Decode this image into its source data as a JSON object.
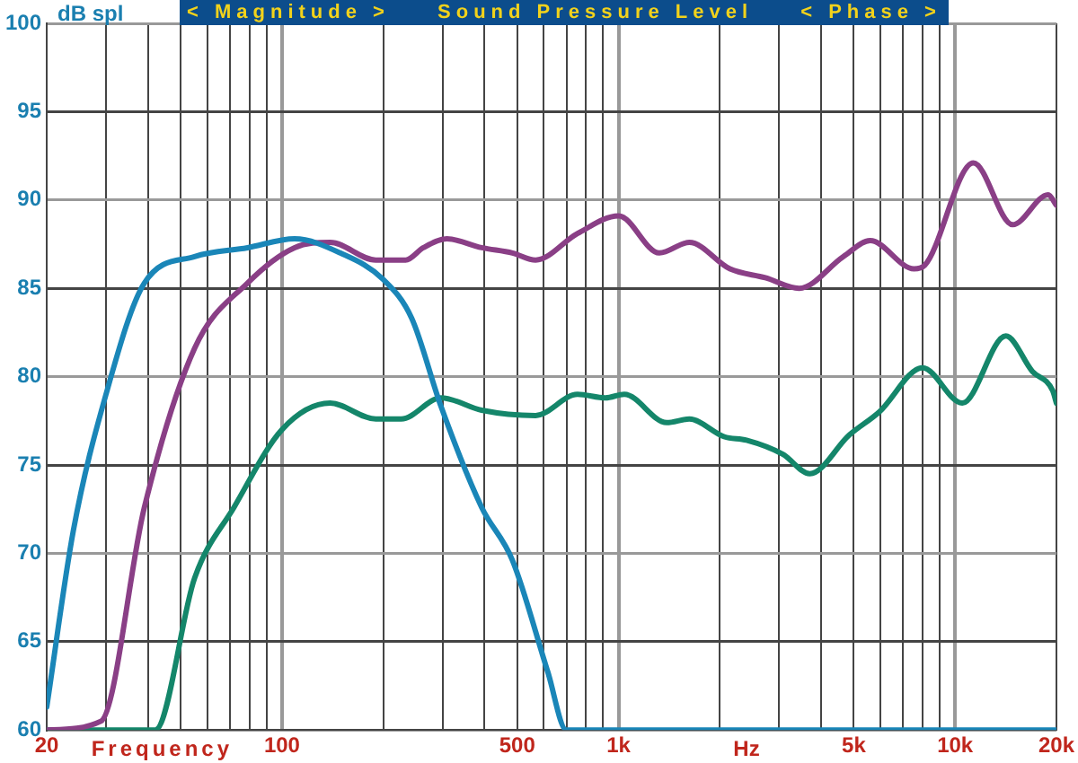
{
  "chart_data": {
    "type": "line",
    "title": "Sound Pressure Level",
    "xlabel": "Frequency",
    "ylabel": "dB spl",
    "annotations": [
      "< Magnitude >",
      "< Phase >",
      "Hz"
    ],
    "log": "x",
    "grid": true,
    "legend": false,
    "marker": "none",
    "line_style": "solid",
    "xlim": [
      20,
      20000
    ],
    "xticks": [
      20,
      {
        "value": 30,
        "label": null
      },
      {
        "value": 40,
        "label": null
      },
      {
        "value": 50,
        "label": null
      },
      {
        "value": 60,
        "label": null
      },
      {
        "value": 70,
        "label": null
      },
      {
        "value": 80,
        "label": null
      },
      {
        "value": 90,
        "label": null
      },
      100,
      {
        "value": 200,
        "label": null
      },
      {
        "value": 300,
        "label": null
      },
      {
        "value": 400,
        "label": null
      },
      500,
      {
        "value": 600,
        "label": null
      },
      {
        "value": 700,
        "label": null
      },
      {
        "value": 800,
        "label": null
      },
      {
        "value": 900,
        "label": null
      },
      {
        "value": 1000,
        "label": "1k"
      },
      {
        "value": 2000,
        "label": null
      },
      {
        "value": 3000,
        "label": null
      },
      {
        "value": 4000,
        "label": null
      },
      {
        "value": 5000,
        "label": "5k"
      },
      {
        "value": 6000,
        "label": null
      },
      {
        "value": 7000,
        "label": null
      },
      {
        "value": 8000,
        "label": null
      },
      {
        "value": 9000,
        "label": null
      },
      {
        "value": 10000,
        "label": "10k"
      },
      {
        "value": 20000,
        "label": "20k"
      }
    ],
    "ylim": [
      60,
      100
    ],
    "yticks": [
      60,
      65,
      70,
      75,
      80,
      85,
      90,
      95,
      100
    ],
    "series": [
      {
        "color": "#1a86b8",
        "x": [
          20,
          24,
          30,
          39,
          55,
          79,
          109,
          149,
          200,
          243,
          297,
          392,
          484,
          616,
          700,
          20000
        ],
        "values": [
          61.3,
          71.3,
          79,
          85.3,
          86.8,
          87.3,
          87.8,
          87,
          85.5,
          83.3,
          78.3,
          72.6,
          69.6,
          63.3,
          60,
          60
        ]
      },
      {
        "color": "#8a3f86",
        "x": [
          20,
          29,
          39,
          55,
          79,
          109,
          139,
          190,
          233,
          263,
          309,
          392,
          484,
          567,
          755,
          1000,
          1322,
          1623,
          2143,
          2730,
          3440,
          4660,
          5590,
          7550,
          8120,
          11330,
          14820,
          18900,
          20000
        ],
        "values": [
          60,
          60.5,
          72.6,
          81.6,
          85.3,
          87.3,
          87.6,
          86.6,
          86.6,
          87.3,
          87.8,
          87.3,
          87,
          86.6,
          88.1,
          89.1,
          87,
          87.6,
          86.1,
          85.6,
          85,
          86.8,
          87.7,
          86.1,
          86.3,
          92.1,
          88.6,
          90.3,
          89.7
        ]
      },
      {
        "color": "#14866a",
        "x": [
          20,
          42,
          55,
          72,
          100,
          139,
          190,
          226,
          297,
          392,
          567,
          755,
          914,
          1040,
          1390,
          1623,
          2060,
          2400,
          3080,
          3700,
          4850,
          5950,
          8000,
          10500,
          14150,
          16960,
          19500,
          20000
        ],
        "values": [
          60,
          60,
          68.6,
          72.6,
          77,
          78.5,
          77.6,
          77.6,
          78.8,
          78.1,
          77.8,
          79,
          78.8,
          79,
          77.4,
          77.6,
          76.6,
          76.4,
          75.6,
          74.5,
          76.7,
          78,
          80.5,
          78.5,
          82.3,
          80.3,
          79.2,
          78.5
        ]
      }
    ]
  }
}
